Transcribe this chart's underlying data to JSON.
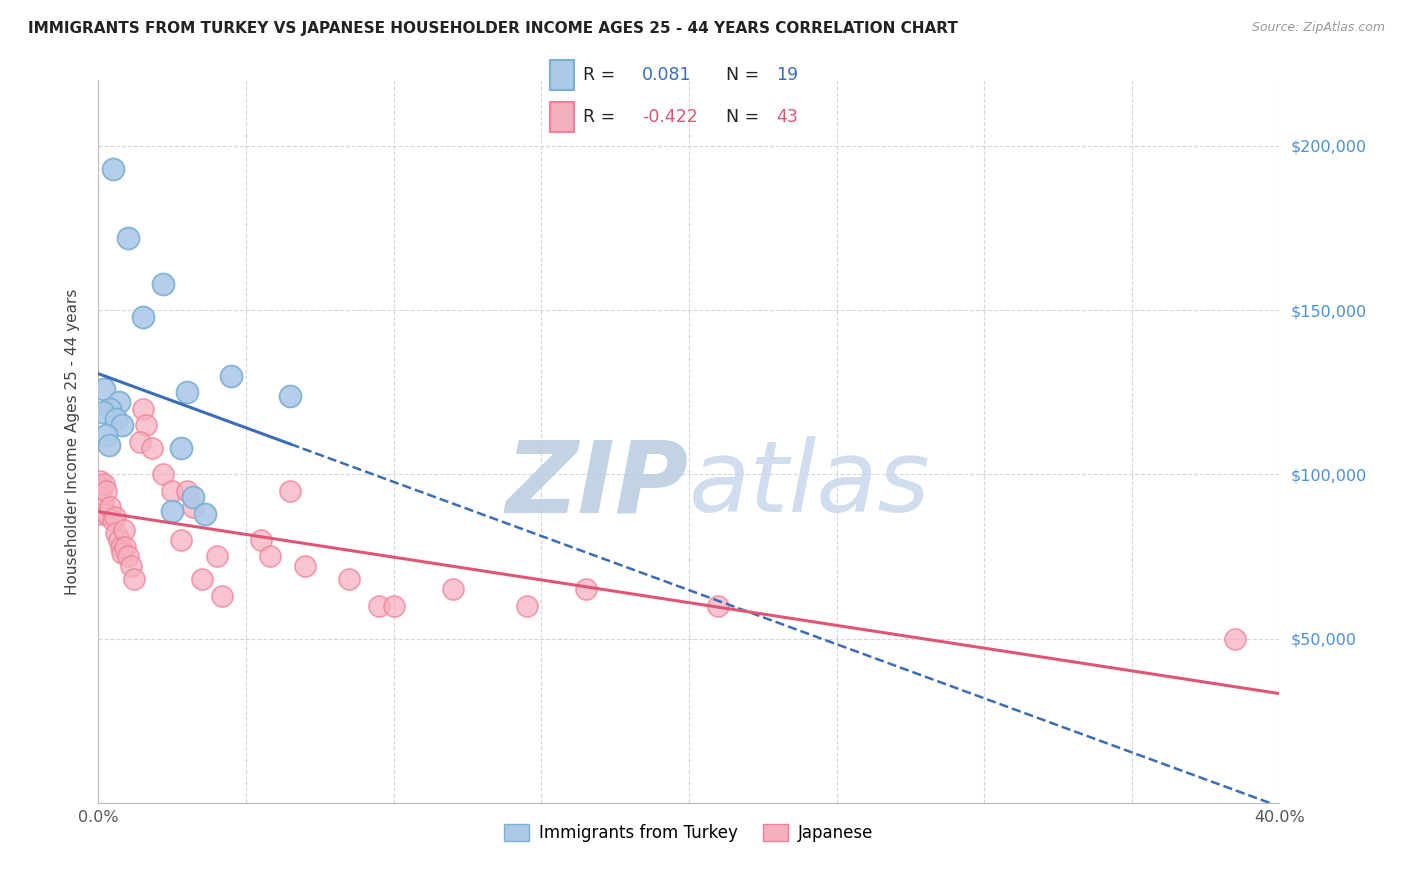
{
  "title": "IMMIGRANTS FROM TURKEY VS JAPANESE HOUSEHOLDER INCOME AGES 25 - 44 YEARS CORRELATION CHART",
  "source": "Source: ZipAtlas.com",
  "ylabel": "Householder Income Ages 25 - 44 years",
  "xlim": [
    0.0,
    40.0
  ],
  "ylim": [
    0,
    220000
  ],
  "yticks": [
    0,
    50000,
    100000,
    150000,
    200000
  ],
  "background_color": "#ffffff",
  "grid_color": "#cccccc",
  "turkey_color": "#7bafd4",
  "turkey_color_fill": "#adc9e8",
  "japanese_color": "#f08098",
  "japanese_color_fill": "#f5b0c0",
  "turkey_R": 0.081,
  "turkey_N": 19,
  "japanese_R": -0.422,
  "japanese_N": 43,
  "turkey_points": [
    [
      0.5,
      193000
    ],
    [
      1.0,
      172000
    ],
    [
      2.2,
      158000
    ],
    [
      1.5,
      148000
    ],
    [
      0.2,
      126000
    ],
    [
      0.7,
      122000
    ],
    [
      0.4,
      120000
    ],
    [
      0.15,
      119000
    ],
    [
      0.6,
      117000
    ],
    [
      0.8,
      115000
    ],
    [
      0.25,
      112000
    ],
    [
      0.35,
      109000
    ],
    [
      4.5,
      130000
    ],
    [
      6.5,
      124000
    ],
    [
      3.0,
      125000
    ],
    [
      2.8,
      108000
    ],
    [
      3.2,
      93000
    ],
    [
      2.5,
      89000
    ],
    [
      3.6,
      88000
    ]
  ],
  "japanese_points": [
    [
      0.05,
      98000
    ],
    [
      0.1,
      96000
    ],
    [
      0.15,
      92000
    ],
    [
      0.2,
      97000
    ],
    [
      0.1,
      88000
    ],
    [
      0.25,
      95000
    ],
    [
      0.3,
      88000
    ],
    [
      0.4,
      90000
    ],
    [
      0.5,
      86000
    ],
    [
      0.55,
      87000
    ],
    [
      0.6,
      82000
    ],
    [
      0.7,
      80000
    ],
    [
      0.75,
      78000
    ],
    [
      0.8,
      76000
    ],
    [
      0.85,
      83000
    ],
    [
      0.9,
      78000
    ],
    [
      1.0,
      75000
    ],
    [
      1.1,
      72000
    ],
    [
      1.2,
      68000
    ],
    [
      1.5,
      120000
    ],
    [
      1.6,
      115000
    ],
    [
      1.4,
      110000
    ],
    [
      1.8,
      108000
    ],
    [
      2.2,
      100000
    ],
    [
      2.5,
      95000
    ],
    [
      2.8,
      80000
    ],
    [
      3.0,
      95000
    ],
    [
      3.2,
      90000
    ],
    [
      3.5,
      68000
    ],
    [
      4.0,
      75000
    ],
    [
      4.2,
      63000
    ],
    [
      5.5,
      80000
    ],
    [
      5.8,
      75000
    ],
    [
      6.5,
      95000
    ],
    [
      7.0,
      72000
    ],
    [
      8.5,
      68000
    ],
    [
      9.5,
      60000
    ],
    [
      10.0,
      60000
    ],
    [
      12.0,
      65000
    ],
    [
      14.5,
      60000
    ],
    [
      16.5,
      65000
    ],
    [
      21.0,
      60000
    ],
    [
      38.5,
      50000
    ]
  ],
  "watermark_zip": "ZIP",
  "watermark_atlas": "atlas",
  "watermark_color_zip": "#b8cce4",
  "watermark_color_atlas": "#c5d9ef",
  "turkey_line_color": "#3a6db5",
  "japanese_line_color": "#e05575"
}
